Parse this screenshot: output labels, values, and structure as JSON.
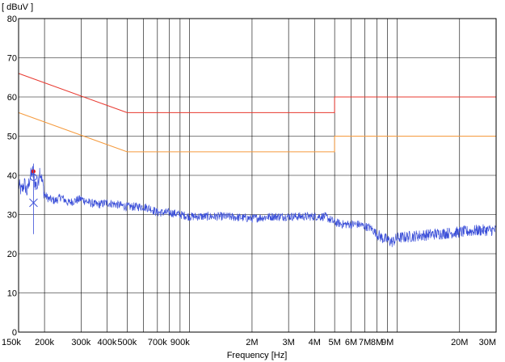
{
  "chart_data": {
    "type": "line",
    "title": "",
    "ylabel": "[ dBuV ]",
    "xlabel": "Frequency [Hz]",
    "xscale": "log",
    "xlim": [
      150000,
      30000000
    ],
    "ylim": [
      0,
      80
    ],
    "grid": true,
    "x_ticks": [
      {
        "value": 150000,
        "label": "150k"
      },
      {
        "value": 200000,
        "label": "200k"
      },
      {
        "value": 300000,
        "label": "300k"
      },
      {
        "value": 400000,
        "label": "400k"
      },
      {
        "value": 500000,
        "label": "500k"
      },
      {
        "value": 700000,
        "label": "700k"
      },
      {
        "value": 900000,
        "label": "900k"
      },
      {
        "value": 2000000,
        "label": "2M"
      },
      {
        "value": 3000000,
        "label": "3M"
      },
      {
        "value": 4000000,
        "label": "4M"
      },
      {
        "value": 5000000,
        "label": "5M"
      },
      {
        "value": 6000000,
        "label": "6M"
      },
      {
        "value": 7000000,
        "label": "7M"
      },
      {
        "value": 8000000,
        "label": "8M"
      },
      {
        "value": 9000000,
        "label": "9M"
      },
      {
        "value": 20000000,
        "label": "20M"
      },
      {
        "value": 30000000,
        "label": "30M"
      }
    ],
    "y_ticks": [
      0,
      10,
      20,
      30,
      40,
      50,
      60,
      70,
      80
    ],
    "series": [
      {
        "color": "#e8382f",
        "points": [
          [
            150000,
            66
          ],
          [
            500000,
            56
          ],
          [
            5000000,
            56
          ],
          [
            5000000,
            60
          ],
          [
            30000000,
            60
          ]
        ]
      },
      {
        "color": "#f59a3c",
        "points": [
          [
            150000,
            56
          ],
          [
            500000,
            46
          ],
          [
            5000000,
            46
          ],
          [
            5000000,
            50
          ],
          [
            30000000,
            50
          ]
        ]
      },
      {
        "color": "#3b4fd8",
        "points": [
          [
            150000,
            37.5
          ],
          [
            155000,
            36
          ],
          [
            160000,
            38
          ],
          [
            165000,
            35.5
          ],
          [
            170000,
            39.5
          ],
          [
            175000,
            41
          ],
          [
            180000,
            38
          ],
          [
            185000,
            37
          ],
          [
            190000,
            41.5
          ],
          [
            195000,
            38.5
          ],
          [
            200000,
            35
          ],
          [
            210000,
            34
          ],
          [
            225000,
            33.5
          ],
          [
            240000,
            34.5
          ],
          [
            260000,
            33
          ],
          [
            280000,
            33.5
          ],
          [
            300000,
            34
          ],
          [
            330000,
            33
          ],
          [
            360000,
            32.5
          ],
          [
            400000,
            33
          ],
          [
            450000,
            32.5
          ],
          [
            500000,
            32
          ],
          [
            550000,
            32
          ],
          [
            600000,
            32
          ],
          [
            650000,
            31.5
          ],
          [
            700000,
            30.5
          ],
          [
            800000,
            30.5
          ],
          [
            900000,
            30
          ],
          [
            1000000,
            29.5
          ],
          [
            1200000,
            29.5
          ],
          [
            1500000,
            29.5
          ],
          [
            2000000,
            29
          ],
          [
            2500000,
            29.5
          ],
          [
            3000000,
            29.5
          ],
          [
            3500000,
            29.5
          ],
          [
            4000000,
            29.5
          ],
          [
            4500000,
            29.5
          ],
          [
            5000000,
            28
          ],
          [
            5500000,
            27.5
          ],
          [
            6000000,
            27.5
          ],
          [
            6500000,
            27.5
          ],
          [
            7000000,
            27
          ],
          [
            7500000,
            26.5
          ],
          [
            8000000,
            25
          ],
          [
            8500000,
            24
          ],
          [
            9000000,
            23.5
          ],
          [
            9500000,
            23
          ],
          [
            10000000,
            24
          ],
          [
            12000000,
            24.5
          ],
          [
            15000000,
            25
          ],
          [
            20000000,
            25.5
          ],
          [
            25000000,
            26
          ],
          [
            30000000,
            26
          ]
        ]
      }
    ],
    "markers": [
      {
        "shape": "dot",
        "color": "#e31a1c",
        "x": 177000,
        "y": 41
      },
      {
        "shape": "circle",
        "color": "#3b4fd8",
        "x": 177000,
        "y": 39.5
      },
      {
        "shape": "x",
        "color": "#3b4fd8",
        "x": 177000,
        "y": 33
      }
    ]
  }
}
